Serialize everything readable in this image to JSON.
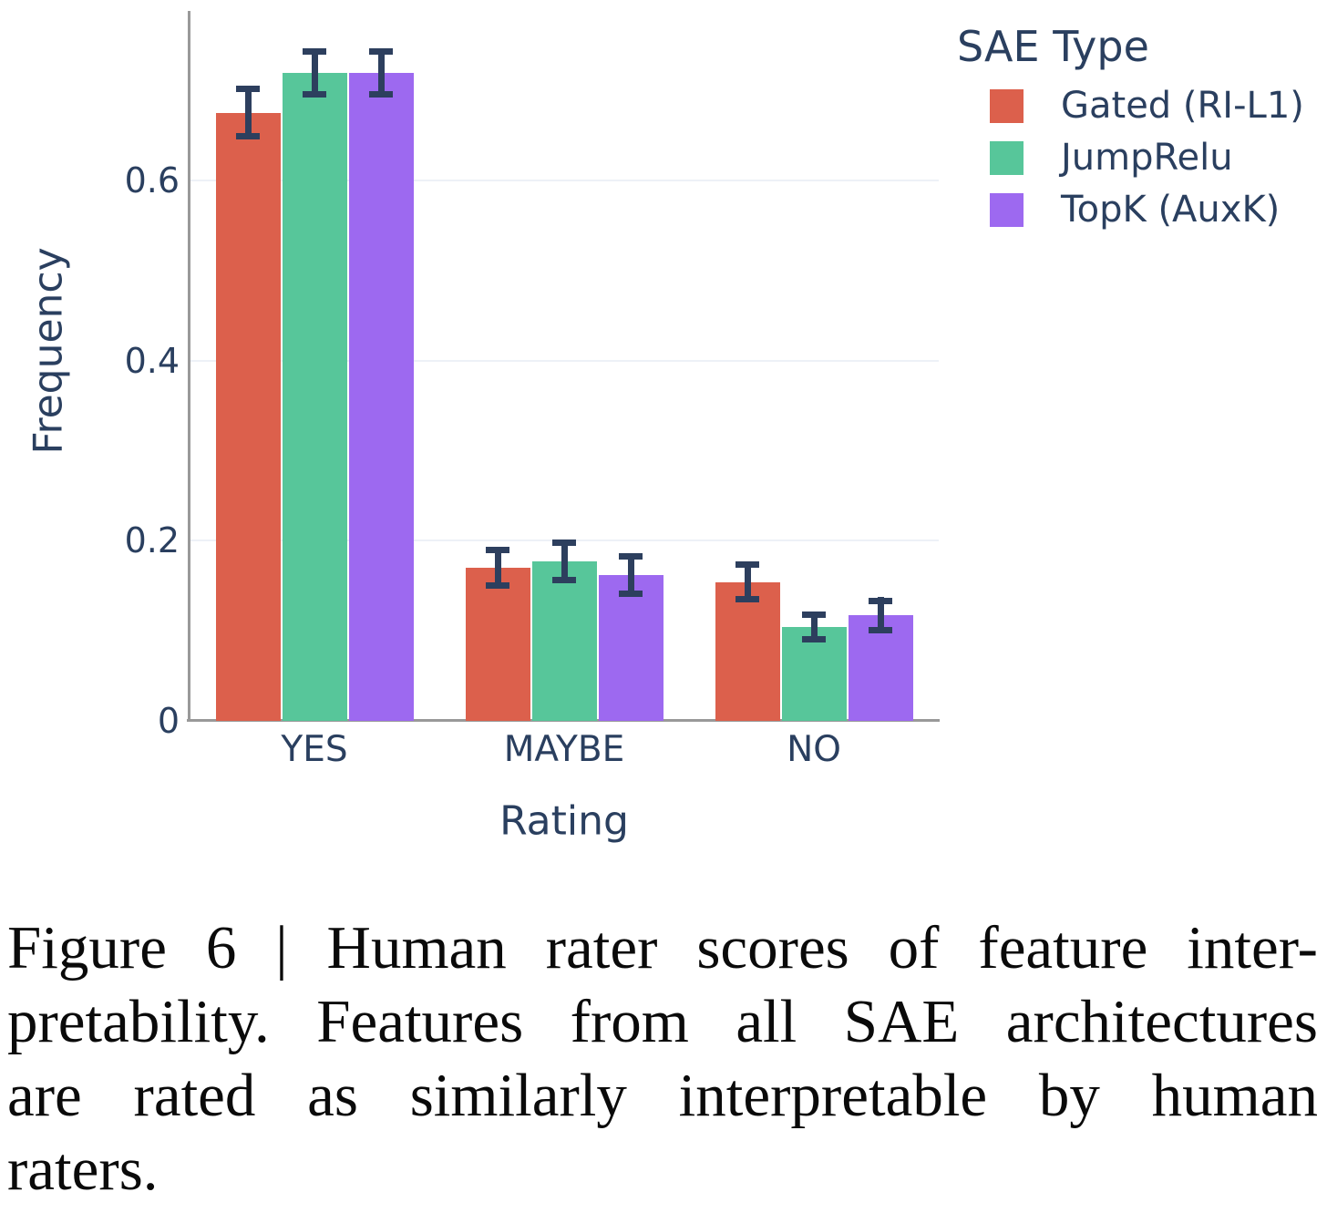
{
  "style": {
    "text_color": "#2a3f5f",
    "axis_color": "#999999",
    "grid_color": "#edf1f7",
    "errorbar_color": "#2d3f5e",
    "background": "#ffffff"
  },
  "chart_data": {
    "type": "bar",
    "title": "",
    "xlabel": "Rating",
    "ylabel": "Frequency",
    "categories": [
      "YES",
      "MAYBE",
      "NO"
    ],
    "series": [
      {
        "name": "Gated (RI-L1)",
        "color": "#DC604C",
        "values": [
          0.675,
          0.17,
          0.154
        ],
        "errors": [
          0.03,
          0.023,
          0.023
        ]
      },
      {
        "name": "JumpRelu",
        "color": "#57C69A",
        "values": [
          0.719,
          0.177,
          0.104
        ],
        "errors": [
          0.027,
          0.024,
          0.017
        ]
      },
      {
        "name": "TopK (AuxK)",
        "color": "#9D69F0",
        "values": [
          0.719,
          0.162,
          0.117
        ],
        "errors": [
          0.027,
          0.024,
          0.02
        ]
      }
    ],
    "legend_title": "SAE Type",
    "legend_position": "top-right",
    "yticks": [
      0,
      0.2,
      0.4,
      0.6
    ],
    "ytick_labels": [
      "0",
      "0.2",
      "0.4",
      "0.6"
    ],
    "ylim": [
      0,
      0.79
    ],
    "grid": true,
    "error_bars": true
  },
  "caption": {
    "lines": [
      "Figure 6 | Human rater scores of feature inter-",
      "pretability. Features from all SAE architectures",
      "are rated as similarly interpretable by human",
      "raters."
    ]
  }
}
